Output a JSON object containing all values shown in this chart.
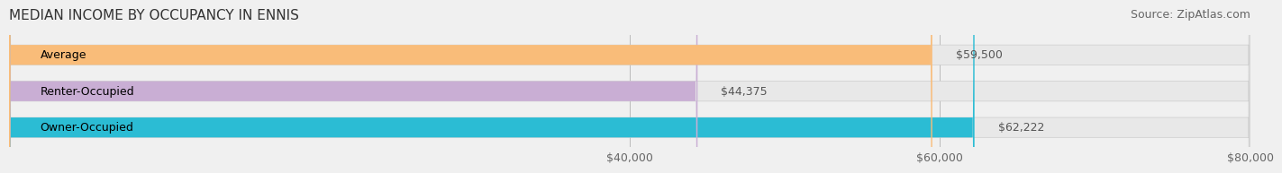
{
  "title": "MEDIAN INCOME BY OCCUPANCY IN ENNIS",
  "source": "Source: ZipAtlas.com",
  "categories": [
    "Owner-Occupied",
    "Renter-Occupied",
    "Average"
  ],
  "values": [
    62222,
    44375,
    59500
  ],
  "bar_colors": [
    "#2bbcd4",
    "#c9aed4",
    "#f9bc79"
  ],
  "bar_labels": [
    "$62,222",
    "$44,375",
    "$59,500"
  ],
  "xlim": [
    0,
    80000
  ],
  "xticks": [
    40000,
    60000,
    80000
  ],
  "xtick_labels": [
    "$40,000",
    "$60,000",
    "$80,000"
  ],
  "background_color": "#f0f0f0",
  "bar_background_color": "#e8e8e8",
  "title_fontsize": 11,
  "source_fontsize": 9,
  "label_fontsize": 9,
  "tick_fontsize": 9
}
